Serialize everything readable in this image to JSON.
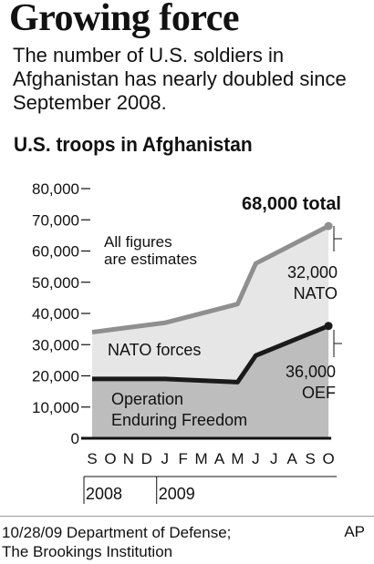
{
  "header": {
    "title": "Growing force",
    "subtitle": "The number of U.S. soldiers in Afghanistan has nearly doubled since September 2008."
  },
  "chart_data": {
    "type": "area",
    "title": "U.S. troops in Afghanistan",
    "categories": [
      "S",
      "O",
      "N",
      "D",
      "J",
      "F",
      "M",
      "A",
      "M",
      "J",
      "J",
      "A",
      "S",
      "O"
    ],
    "years": [
      {
        "label": "2008",
        "start_index": 0,
        "end_index": 3
      },
      {
        "label": "2009",
        "start_index": 4,
        "end_index": 13
      }
    ],
    "ylim": [
      0,
      80000
    ],
    "yticks": [
      0,
      10000,
      20000,
      30000,
      40000,
      50000,
      60000,
      70000,
      80000
    ],
    "ytick_labels": [
      "0",
      "10,000",
      "20,000",
      "30,000",
      "40,000",
      "50,000",
      "60,000",
      "70,000",
      "80,000"
    ],
    "series": [
      {
        "name": "Operation Enduring Freedom",
        "x": [
          0,
          4,
          8,
          9,
          13
        ],
        "values": [
          19000,
          19000,
          18000,
          26500,
          36000
        ],
        "color": "#1a1a1a",
        "fill": "#bdbdbd"
      },
      {
        "name": "NATO forces",
        "x": [
          0,
          4,
          8,
          9,
          13
        ],
        "values": [
          34000,
          37000,
          43000,
          56000,
          68000
        ],
        "color": "#8f8f8f",
        "fill": "#e6e6e6"
      }
    ],
    "annotations": {
      "note_line1": "All figures",
      "note_line2": "are estimates",
      "total": "68,000 total",
      "nato_value": "32,000",
      "nato_label": "NATO",
      "oef_value": "36,000",
      "oef_label": "OEF",
      "nato_area_label": "NATO forces",
      "oef_area_line1": "Operation",
      "oef_area_line2": "Enduring Freedom"
    },
    "grid": false
  },
  "footer": {
    "source_line1": "10/28/09 Department of Defense;",
    "source_line2": "The Brookings Institution",
    "credit": "AP"
  }
}
